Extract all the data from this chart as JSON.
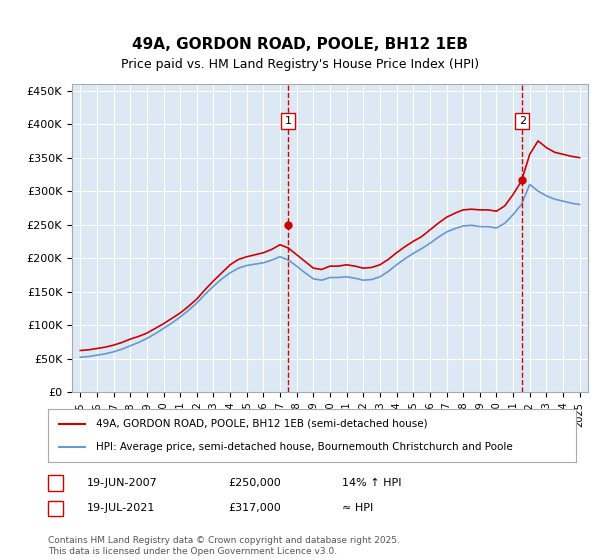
{
  "title": "49A, GORDON ROAD, POOLE, BH12 1EB",
  "subtitle": "Price paid vs. HM Land Registry's House Price Index (HPI)",
  "background_color": "#dce9f5",
  "plot_bg_color": "#dce9f5",
  "red_line_color": "#cc0000",
  "blue_line_color": "#6699cc",
  "ylim": [
    0,
    460000
  ],
  "yticks": [
    0,
    50000,
    100000,
    150000,
    200000,
    250000,
    300000,
    350000,
    400000,
    450000
  ],
  "ytick_labels": [
    "£0",
    "£50K",
    "£100K",
    "£150K",
    "£200K",
    "£250K",
    "£300K",
    "£350K",
    "£400K",
    "£450K"
  ],
  "xlim_start": 1994.5,
  "xlim_end": 2025.5,
  "xticks": [
    1995,
    1996,
    1997,
    1998,
    1999,
    2000,
    2001,
    2002,
    2003,
    2004,
    2005,
    2006,
    2007,
    2008,
    2009,
    2010,
    2011,
    2012,
    2013,
    2014,
    2015,
    2016,
    2017,
    2018,
    2019,
    2020,
    2021,
    2022,
    2023,
    2024,
    2025
  ],
  "vline1_x": 2007.47,
  "vline2_x": 2021.55,
  "marker1_x": 2007.47,
  "marker1_y": 250000,
  "marker2_x": 2021.55,
  "marker2_y": 317000,
  "legend_entries": [
    "49A, GORDON ROAD, POOLE, BH12 1EB (semi-detached house)",
    "HPI: Average price, semi-detached house, Bournemouth Christchurch and Poole"
  ],
  "annotation1": {
    "label": "1",
    "date": "19-JUN-2007",
    "price": "£250,000",
    "hpi": "14% ↑ HPI"
  },
  "annotation2": {
    "label": "2",
    "date": "19-JUL-2021",
    "price": "£317,000",
    "hpi": "≈ HPI"
  },
  "footer": "Contains HM Land Registry data © Crown copyright and database right 2025.\nThis data is licensed under the Open Government Licence v3.0.",
  "hpi_red_years": [
    1995.0,
    1995.5,
    1996.0,
    1996.5,
    1997.0,
    1997.5,
    1998.0,
    1998.5,
    1999.0,
    1999.5,
    2000.0,
    2000.5,
    2001.0,
    2001.5,
    2002.0,
    2002.5,
    2003.0,
    2003.5,
    2004.0,
    2004.5,
    2005.0,
    2005.5,
    2006.0,
    2006.5,
    2007.0,
    2007.5,
    2008.0,
    2008.5,
    2009.0,
    2009.5,
    2010.0,
    2010.5,
    2011.0,
    2011.5,
    2012.0,
    2012.5,
    2013.0,
    2013.5,
    2014.0,
    2014.5,
    2015.0,
    2015.5,
    2016.0,
    2016.5,
    2017.0,
    2017.5,
    2018.0,
    2018.5,
    2019.0,
    2019.5,
    2020.0,
    2020.5,
    2021.0,
    2021.5,
    2022.0,
    2022.5,
    2023.0,
    2023.5,
    2024.0,
    2024.5,
    2025.0
  ],
  "hpi_red_values": [
    62000,
    63000,
    65000,
    67000,
    70000,
    74000,
    79000,
    83000,
    88000,
    95000,
    102000,
    110000,
    118000,
    128000,
    139000,
    153000,
    166000,
    178000,
    190000,
    198000,
    202000,
    205000,
    208000,
    213000,
    220000,
    215000,
    205000,
    195000,
    185000,
    183000,
    188000,
    188000,
    190000,
    188000,
    185000,
    186000,
    190000,
    198000,
    208000,
    217000,
    225000,
    232000,
    242000,
    252000,
    261000,
    267000,
    272000,
    273000,
    272000,
    272000,
    270000,
    278000,
    295000,
    315000,
    355000,
    375000,
    365000,
    358000,
    355000,
    352000,
    350000
  ],
  "hpi_blue_years": [
    1995.0,
    1995.5,
    1996.0,
    1996.5,
    1997.0,
    1997.5,
    1998.0,
    1998.5,
    1999.0,
    1999.5,
    2000.0,
    2000.5,
    2001.0,
    2001.5,
    2002.0,
    2002.5,
    2003.0,
    2003.5,
    2004.0,
    2004.5,
    2005.0,
    2005.5,
    2006.0,
    2006.5,
    2007.0,
    2007.5,
    2008.0,
    2008.5,
    2009.0,
    2009.5,
    2010.0,
    2010.5,
    2011.0,
    2011.5,
    2012.0,
    2012.5,
    2013.0,
    2013.5,
    2014.0,
    2014.5,
    2015.0,
    2015.5,
    2016.0,
    2016.5,
    2017.0,
    2017.5,
    2018.0,
    2018.5,
    2019.0,
    2019.5,
    2020.0,
    2020.5,
    2021.0,
    2021.5,
    2022.0,
    2022.5,
    2023.0,
    2023.5,
    2024.0,
    2024.5,
    2025.0
  ],
  "hpi_blue_values": [
    52000,
    53000,
    55000,
    57000,
    60000,
    64000,
    69000,
    74000,
    80000,
    87000,
    95000,
    103000,
    112000,
    122000,
    133000,
    146000,
    158000,
    169000,
    178000,
    185000,
    189000,
    191000,
    193000,
    197000,
    202000,
    197000,
    188000,
    178000,
    169000,
    167000,
    171000,
    171000,
    172000,
    170000,
    167000,
    168000,
    172000,
    180000,
    190000,
    199000,
    207000,
    214000,
    222000,
    231000,
    239000,
    244000,
    248000,
    249000,
    247000,
    247000,
    245000,
    252000,
    265000,
    280000,
    310000,
    300000,
    293000,
    288000,
    285000,
    282000,
    280000
  ]
}
